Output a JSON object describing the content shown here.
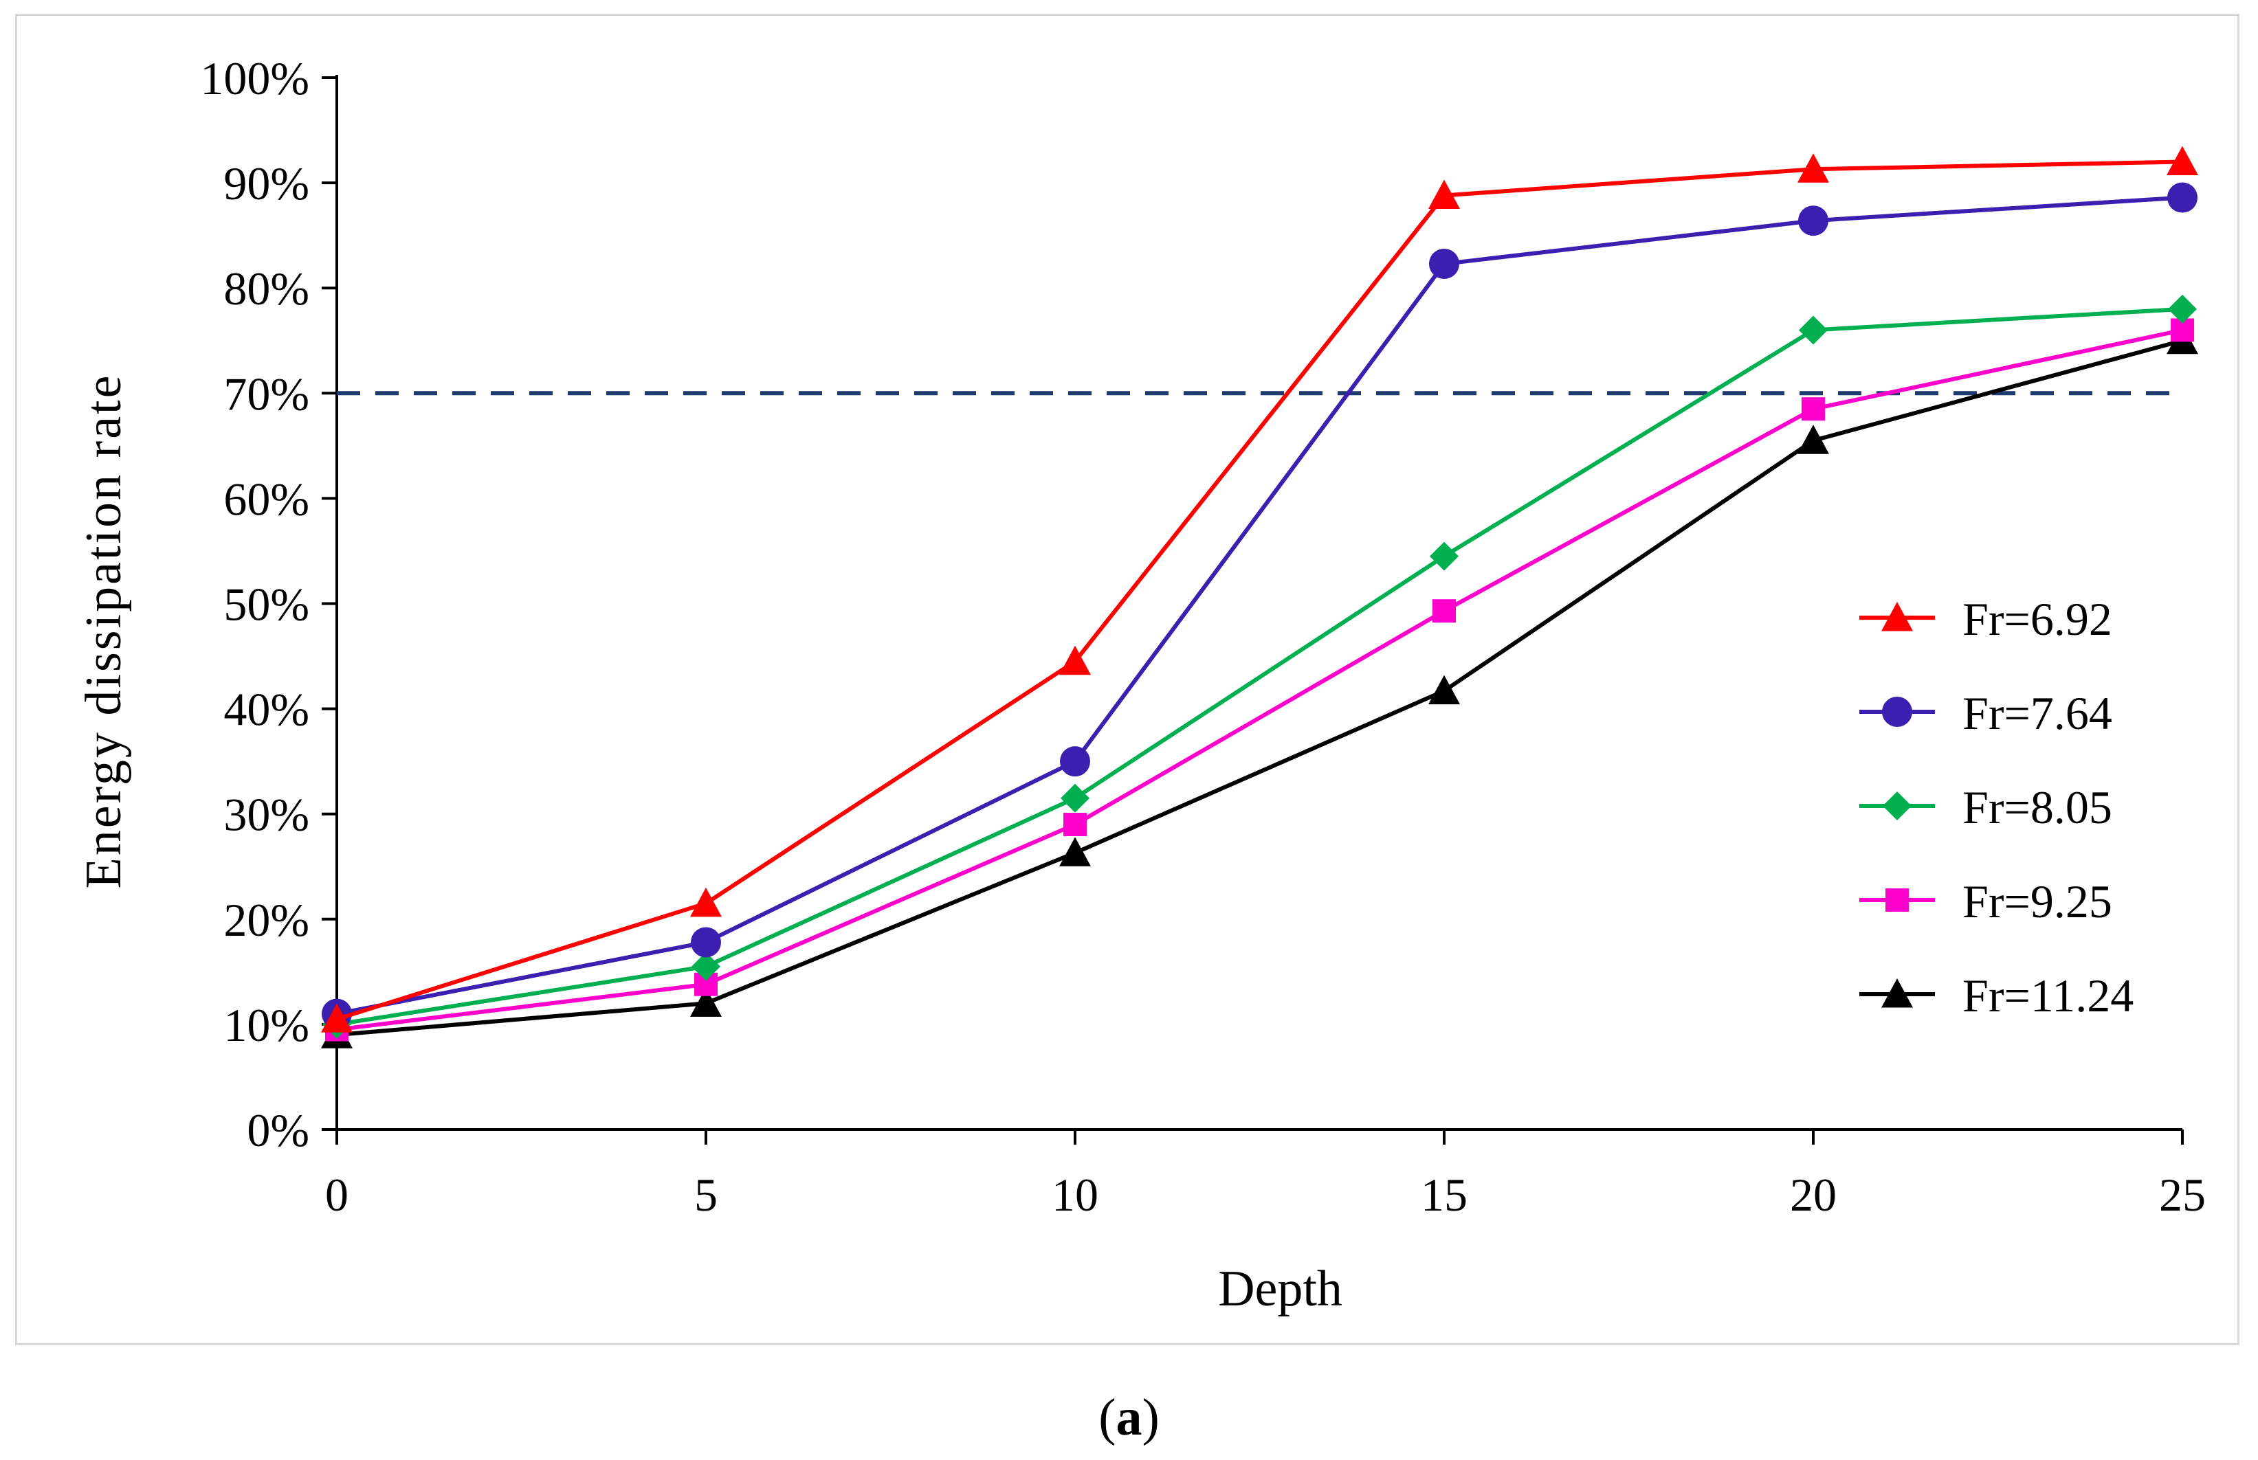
{
  "chart_data": {
    "type": "line",
    "title": "",
    "xlabel": "Depth",
    "ylabel": "Energy dissipation rate",
    "x": [
      0,
      5,
      10,
      15,
      20,
      25
    ],
    "xlim": [
      0,
      25
    ],
    "ylim": [
      0,
      100
    ],
    "xticks": [
      "0",
      "5",
      "10",
      "15",
      "20",
      "25"
    ],
    "yticks": [
      "0%",
      "10%",
      "20%",
      "30%",
      "40%",
      "50%",
      "60%",
      "70%",
      "80%",
      "90%",
      "100%"
    ],
    "grid": false,
    "legend_position": "right",
    "reference_line": {
      "y": 70,
      "style": "dashed",
      "color": "#1f3a6e"
    },
    "series": [
      {
        "name": "Fr=6.92",
        "color": "#ff0000",
        "marker": "triangle",
        "values": [
          10.5,
          21.5,
          44.5,
          88.8,
          91.3,
          92.0
        ]
      },
      {
        "name": "Fr=7.64",
        "color": "#3a1fb0",
        "marker": "circle",
        "values": [
          11.0,
          17.8,
          35.0,
          82.3,
          86.4,
          88.6
        ]
      },
      {
        "name": "Fr=8.05",
        "color": "#00b050",
        "marker": "diamond",
        "values": [
          10.0,
          15.5,
          31.5,
          54.5,
          76.0,
          78.0
        ]
      },
      {
        "name": "Fr=9.25",
        "color": "#ff00cc",
        "marker": "square",
        "values": [
          9.5,
          13.8,
          29.0,
          49.3,
          68.5,
          76.0
        ]
      },
      {
        "name": "Fr=11.24",
        "color": "#000000",
        "marker": "triangle",
        "values": [
          9.0,
          12.0,
          26.3,
          41.7,
          65.5,
          75.0
        ]
      }
    ]
  },
  "caption": {
    "open": "(",
    "label": "a",
    "close": ")"
  }
}
